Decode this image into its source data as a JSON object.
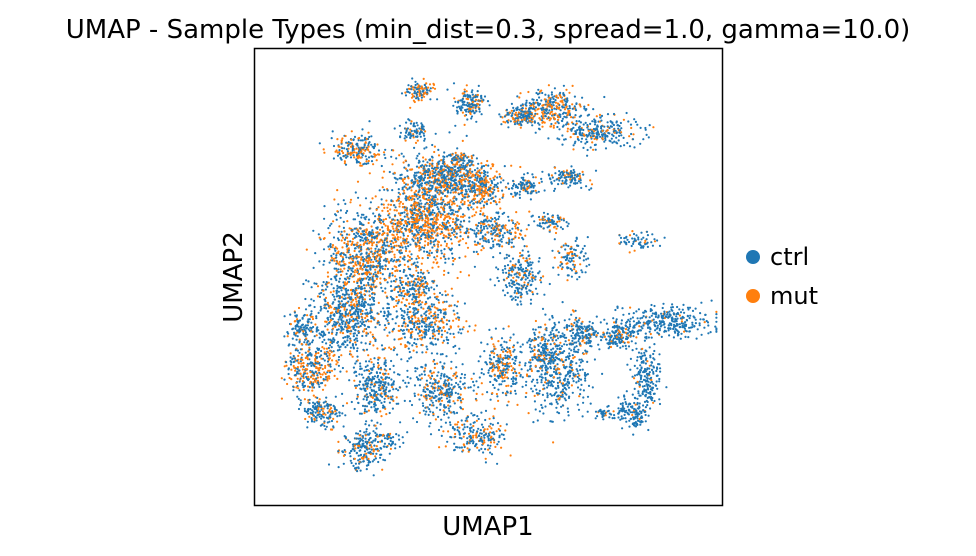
{
  "chart_data": {
    "type": "scatter",
    "title": "UMAP - Sample Types (min_dist=0.3, spread=1.0, gamma=10.0)",
    "xlabel": "UMAP1",
    "ylabel": "UMAP2",
    "xlim": [
      0,
      100
    ],
    "ylim": [
      0,
      100
    ],
    "grid": false,
    "ticks": false,
    "legend_position": "right",
    "series": [
      {
        "name": "ctrl",
        "color": "#1f77b4"
      },
      {
        "name": "mut",
        "color": "#ff7f0e"
      }
    ],
    "clusters": [
      {
        "cx": 36,
        "cy": 62,
        "rx": 10,
        "ry": 8,
        "n": 900,
        "mut_frac": 0.55
      },
      {
        "cx": 24,
        "cy": 55,
        "rx": 8,
        "ry": 9,
        "n": 700,
        "mut_frac": 0.45
      },
      {
        "cx": 40,
        "cy": 72,
        "rx": 8,
        "ry": 5,
        "n": 600,
        "mut_frac": 0.3
      },
      {
        "cx": 20,
        "cy": 42,
        "rx": 7,
        "ry": 8,
        "n": 600,
        "mut_frac": 0.25
      },
      {
        "cx": 12,
        "cy": 30,
        "rx": 5,
        "ry": 6,
        "n": 300,
        "mut_frac": 0.45
      },
      {
        "cx": 14,
        "cy": 20,
        "rx": 4,
        "ry": 3,
        "n": 150,
        "mut_frac": 0.2
      },
      {
        "cx": 23,
        "cy": 12,
        "rx": 4,
        "ry": 4,
        "n": 200,
        "mut_frac": 0.2
      },
      {
        "cx": 26,
        "cy": 26,
        "rx": 5,
        "ry": 6,
        "n": 300,
        "mut_frac": 0.2
      },
      {
        "cx": 36,
        "cy": 40,
        "rx": 7,
        "ry": 6,
        "n": 400,
        "mut_frac": 0.35
      },
      {
        "cx": 40,
        "cy": 25,
        "rx": 6,
        "ry": 6,
        "n": 300,
        "mut_frac": 0.2
      },
      {
        "cx": 47,
        "cy": 15,
        "rx": 6,
        "ry": 4,
        "n": 200,
        "mut_frac": 0.3
      },
      {
        "cx": 53,
        "cy": 30,
        "rx": 4,
        "ry": 6,
        "n": 250,
        "mut_frac": 0.25
      },
      {
        "cx": 57,
        "cy": 50,
        "rx": 4,
        "ry": 5,
        "n": 200,
        "mut_frac": 0.2
      },
      {
        "cx": 52,
        "cy": 60,
        "rx": 5,
        "ry": 4,
        "n": 200,
        "mut_frac": 0.3
      },
      {
        "cx": 48,
        "cy": 70,
        "rx": 5,
        "ry": 4,
        "n": 250,
        "mut_frac": 0.5
      },
      {
        "cx": 58,
        "cy": 70,
        "rx": 3,
        "ry": 2,
        "n": 100,
        "mut_frac": 0.2
      },
      {
        "cx": 22,
        "cy": 78,
        "rx": 5,
        "ry": 3,
        "n": 200,
        "mut_frac": 0.5
      },
      {
        "cx": 34,
        "cy": 82,
        "rx": 3,
        "ry": 2,
        "n": 80,
        "mut_frac": 0.2
      },
      {
        "cx": 44,
        "cy": 76,
        "rx": 2,
        "ry": 2,
        "n": 60,
        "mut_frac": 0.3
      },
      {
        "cx": 35,
        "cy": 91,
        "rx": 3,
        "ry": 2,
        "n": 100,
        "mut_frac": 0.5
      },
      {
        "cx": 56,
        "cy": 85,
        "rx": 3,
        "ry": 2,
        "n": 80,
        "mut_frac": 0.3
      },
      {
        "cx": 58,
        "cy": 86,
        "rx": 2,
        "ry": 1.5,
        "n": 60,
        "mut_frac": 0.2
      },
      {
        "cx": 64,
        "cy": 87,
        "rx": 6,
        "ry": 4,
        "n": 300,
        "mut_frac": 0.35
      },
      {
        "cx": 74,
        "cy": 82,
        "rx": 7,
        "ry": 3,
        "n": 250,
        "mut_frac": 0.2
      },
      {
        "cx": 67,
        "cy": 72,
        "rx": 4,
        "ry": 2,
        "n": 120,
        "mut_frac": 0.2
      },
      {
        "cx": 63,
        "cy": 62,
        "rx": 3,
        "ry": 2,
        "n": 80,
        "mut_frac": 0.2
      },
      {
        "cx": 68,
        "cy": 54,
        "rx": 3,
        "ry": 4,
        "n": 100,
        "mut_frac": 0.2
      },
      {
        "cx": 82,
        "cy": 58,
        "rx": 4,
        "ry": 2,
        "n": 60,
        "mut_frac": 0.3
      },
      {
        "cx": 65,
        "cy": 30,
        "rx": 6,
        "ry": 9,
        "n": 500,
        "mut_frac": 0.15
      },
      {
        "cx": 70,
        "cy": 38,
        "rx": 3,
        "ry": 3,
        "n": 120,
        "mut_frac": 0.15
      },
      {
        "cx": 78,
        "cy": 37,
        "rx": 4,
        "ry": 3,
        "n": 150,
        "mut_frac": 0.15
      },
      {
        "cx": 88,
        "cy": 40,
        "rx": 9,
        "ry": 3,
        "n": 300,
        "mut_frac": 0.05
      },
      {
        "cx": 84,
        "cy": 28,
        "rx": 3,
        "ry": 7,
        "n": 200,
        "mut_frac": 0.05
      },
      {
        "cx": 81,
        "cy": 20,
        "rx": 3,
        "ry": 3,
        "n": 120,
        "mut_frac": 0.05
      },
      {
        "cx": 75,
        "cy": 20,
        "rx": 2,
        "ry": 1.5,
        "n": 40,
        "mut_frac": 0.1
      },
      {
        "cx": 61,
        "cy": 34,
        "rx": 2,
        "ry": 4,
        "n": 80,
        "mut_frac": 0.3
      },
      {
        "cx": 29,
        "cy": 14,
        "rx": 2,
        "ry": 2,
        "n": 40,
        "mut_frac": 0.2
      },
      {
        "cx": 10,
        "cy": 38,
        "rx": 3,
        "ry": 4,
        "n": 120,
        "mut_frac": 0.2
      },
      {
        "cx": 46,
        "cy": 88,
        "rx": 3,
        "ry": 3,
        "n": 150,
        "mut_frac": 0.3
      },
      {
        "cx": 34,
        "cy": 48,
        "rx": 4,
        "ry": 3,
        "n": 150,
        "mut_frac": 0.4
      }
    ]
  }
}
